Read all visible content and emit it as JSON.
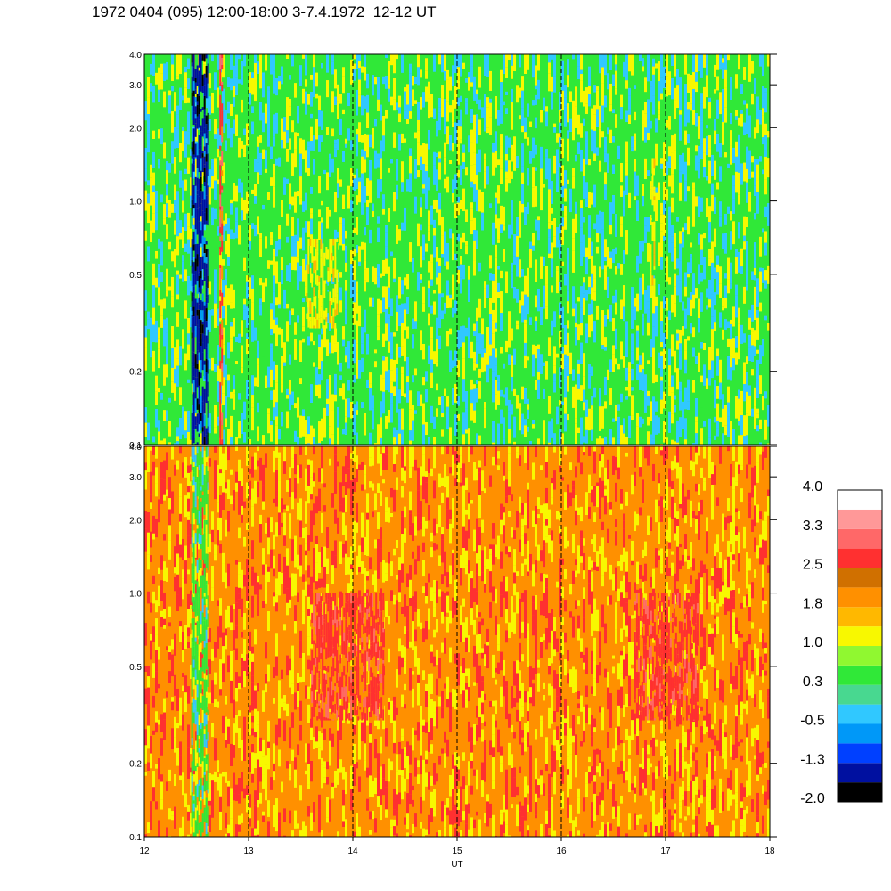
{
  "title": "1972 0404 (095) 12:00-18:00 3-7.4.1972  12-12 UT",
  "chart_data": [
    {
      "type": "heatmap",
      "panel": "upper",
      "x": [
        12,
        18
      ],
      "xlim": [
        12,
        18
      ],
      "xticks": [
        "12",
        "13",
        "14",
        "15",
        "16",
        "17",
        "18"
      ],
      "ylim": [
        0.1,
        4.0
      ],
      "yscale": "log",
      "yticks": [
        "0.1",
        "0.2",
        "0.5",
        "1.0",
        "2.0",
        "3.0",
        "4.0"
      ],
      "vertical_dashed_lines": [
        13,
        14,
        15,
        16,
        17
      ],
      "dominant_levels": [
        0.3,
        1.0,
        -0.5
      ],
      "features": [
        {
          "x_range": [
            12.45,
            12.62
          ],
          "y_range": [
            0.1,
            4.0
          ],
          "level": -1.3
        },
        {
          "x_range": [
            12.72,
            12.74
          ],
          "y_range": [
            0.1,
            4.0
          ],
          "level": 2.5
        },
        {
          "x_range": [
            13.55,
            13.85
          ],
          "y_range": [
            0.3,
            0.7
          ],
          "level": 1.0
        },
        {
          "x_range": [
            16.85,
            16.9
          ],
          "y_range": [
            0.4,
            1.5
          ],
          "level": 1.0
        }
      ],
      "grid": false
    },
    {
      "type": "heatmap",
      "panel": "lower",
      "x": [
        12,
        18
      ],
      "xlim": [
        12,
        18
      ],
      "xticks": [
        "12",
        "13",
        "14",
        "15",
        "16",
        "17",
        "18"
      ],
      "xlabel": "UT",
      "ylim": [
        0.1,
        4.0
      ],
      "yscale": "log",
      "yticks": [
        "0.1",
        "0.2",
        "0.5",
        "1.0",
        "2.0",
        "3.0",
        "4.0"
      ],
      "vertical_dashed_lines": [
        13,
        14,
        15,
        16,
        17
      ],
      "dominant_levels": [
        1.8,
        1.0,
        2.5
      ],
      "features": [
        {
          "x_range": [
            12.45,
            12.62
          ],
          "y_range": [
            0.1,
            4.0
          ],
          "level": 0.3
        },
        {
          "x_range": [
            13.6,
            14.3
          ],
          "y_range": [
            0.3,
            1.0
          ],
          "level": 2.5
        },
        {
          "x_range": [
            16.7,
            17.3
          ],
          "y_range": [
            0.3,
            1.0
          ],
          "level": 2.5
        }
      ],
      "grid": false
    }
  ],
  "colorbar": {
    "labels": [
      "4.0",
      "3.3",
      "2.5",
      "1.8",
      "1.0",
      "0.3",
      "-0.5",
      "-1.3",
      "-2.0"
    ],
    "colors": [
      "#000000",
      "#0010a0",
      "#0040ff",
      "#0098f8",
      "#30c8ff",
      "#48d890",
      "#30e838",
      "#90f830",
      "#f8f800",
      "#ffb800",
      "#ff9000",
      "#d07000",
      "#ff3030",
      "#ff6868",
      "#ff9898",
      "#ffffff"
    ],
    "min": -2.0,
    "max": 4.0
  }
}
